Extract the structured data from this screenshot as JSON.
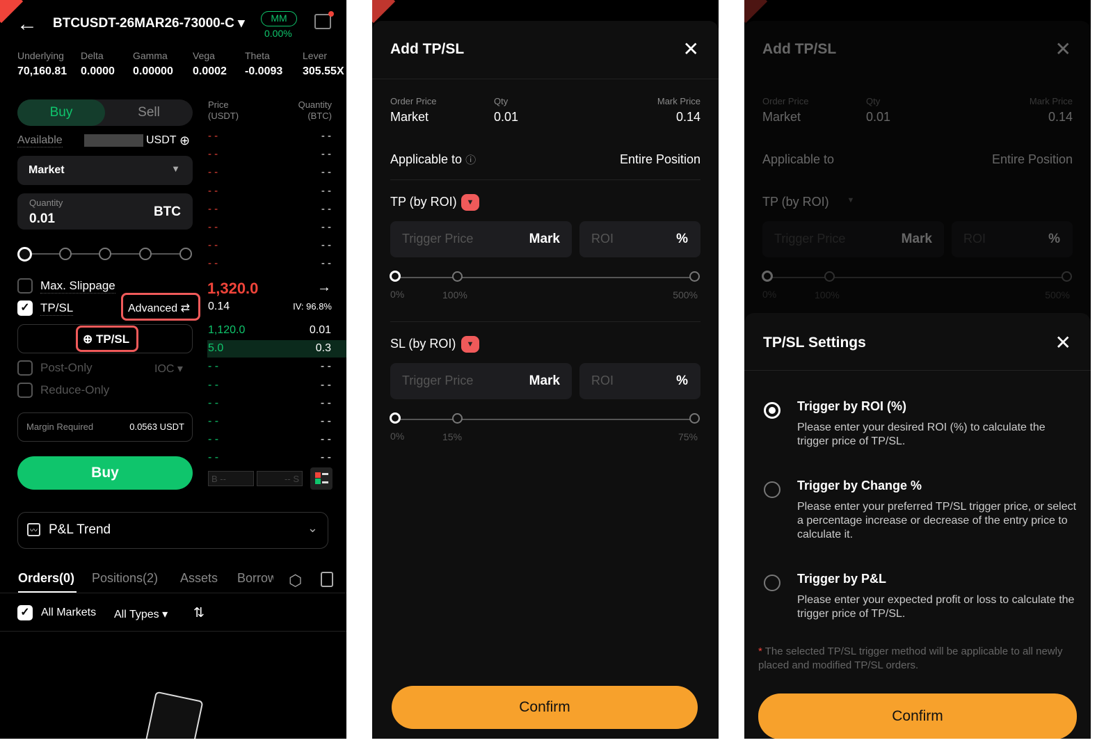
{
  "colors": {
    "accent_green": "#0fc56c",
    "ask_red": "#f0443a",
    "highlight": "#f05a5a",
    "confirm": "#f7a12c"
  },
  "trade": {
    "symbol": "BTCUSDT-26MAR26-73000-C",
    "mm_label": "MM",
    "mm_value": "0.00%",
    "stats": [
      {
        "label": "Underlying",
        "value": "70,160.81"
      },
      {
        "label": "Delta",
        "value": "0.0000"
      },
      {
        "label": "Gamma",
        "value": "0.00000"
      },
      {
        "label": "Vega",
        "value": "0.0002"
      },
      {
        "label": "Theta",
        "value": "-0.0093"
      },
      {
        "label": "Lever",
        "value": "305.55X"
      }
    ],
    "buy_tab": "Buy",
    "sell_tab": "Sell",
    "available_label": "Available",
    "available_unit": "USDT",
    "order_type": "Market",
    "quantity_label": "Quantity",
    "quantity_value": "0.01",
    "quantity_unit": "BTC",
    "slider_value_percent": 0,
    "max_slippage": "Max. Slippage",
    "tpsl": "TP/SL",
    "advanced": "Advanced",
    "add_tpsl": "TP/SL",
    "post_only": "Post-Only",
    "ioc": "IOC",
    "reduce_only": "Reduce-Only",
    "margin_label": "Margin Required",
    "margin_value": "0.0563 USDT",
    "buy_button": "Buy",
    "book": {
      "price_header": "Price",
      "price_unit": "(USDT)",
      "qty_header": "Quantity",
      "qty_unit": "(BTC)",
      "asks": [
        "- -",
        "- -",
        "- -",
        "- -",
        "- -",
        "- -",
        "- -",
        "- -"
      ],
      "last_price": "1,320.0",
      "mark": "0.14",
      "iv": "IV: 96.8%",
      "bids": [
        {
          "price": "1,120.0",
          "qty": "0.01"
        },
        {
          "price": "5.0",
          "qty": "0.3"
        },
        {
          "price": "- -",
          "qty": "- -"
        },
        {
          "price": "- -",
          "qty": "- -"
        },
        {
          "price": "- -",
          "qty": "- -"
        },
        {
          "price": "- -",
          "qty": "- -"
        },
        {
          "price": "- -",
          "qty": "- -"
        },
        {
          "price": "- -",
          "qty": "- -"
        }
      ],
      "b_label": "B",
      "s_label": "S",
      "b_value": "--",
      "s_value": "--"
    },
    "pnl_trend": "P&L Trend",
    "tabs": [
      "Orders(0)",
      "Positions(2)",
      "Assets",
      "Borrow"
    ],
    "all_markets": "All Markets",
    "all_types": "All Types"
  },
  "add_tpsl": {
    "title": "Add TP/SL",
    "order_price_label": "Order Price",
    "order_price": "Market",
    "qty_label": "Qty",
    "qty": "0.01",
    "mark_price_label": "Mark Price",
    "mark_price": "0.14",
    "applicable_label": "Applicable to",
    "applicable_value": "Entire Position",
    "tp_label": "TP (by ROI)",
    "sl_label": "SL (by ROI)",
    "trigger_placeholder": "Trigger Price",
    "mark": "Mark",
    "roi_placeholder": "ROI",
    "pct": "%",
    "tp_ticks": [
      "0%",
      "100%",
      "500%"
    ],
    "sl_ticks": [
      "0%",
      "15%",
      "75%"
    ],
    "confirm": "Confirm"
  },
  "settings": {
    "title": "TP/SL Settings",
    "options": [
      {
        "title": "Trigger by ROI (%)",
        "desc": "Please enter your desired ROI (%) to calculate the trigger price of TP/SL.",
        "selected": true
      },
      {
        "title": "Trigger by Change %",
        "desc": "Please enter your preferred TP/SL trigger price, or select a percentage increase or decrease of the entry price to calculate it.",
        "selected": false
      },
      {
        "title": "Trigger by P&L",
        "desc": "Please enter your expected profit or loss to calculate the trigger price of TP/SL.",
        "selected": false
      }
    ],
    "note_star": "*",
    "note": "The selected TP/SL trigger method will be applicable to all newly placed and modified TP/SL orders.",
    "confirm": "Confirm"
  }
}
